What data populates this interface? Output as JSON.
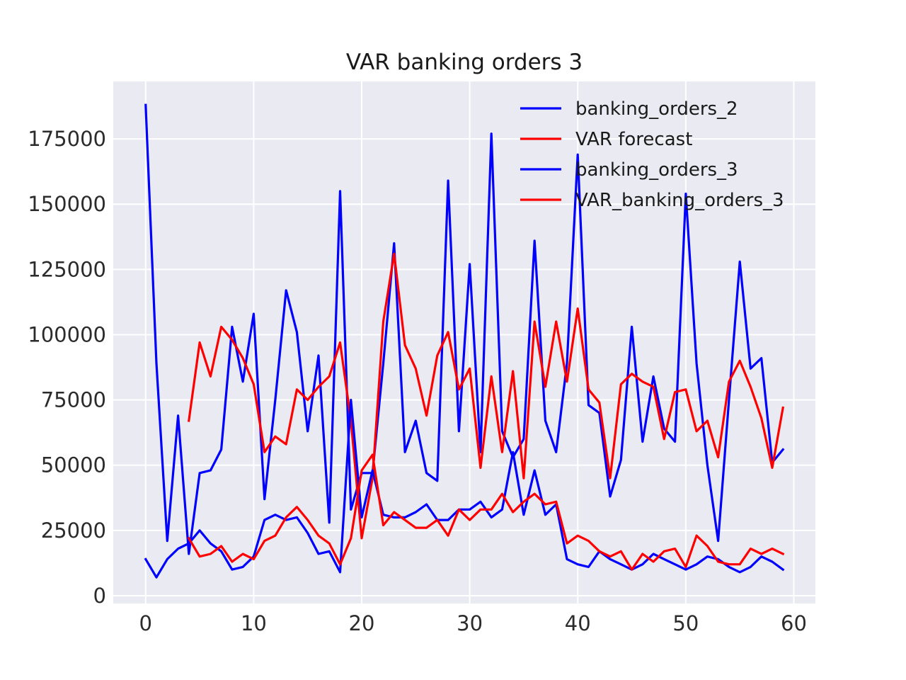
{
  "chart_data": {
    "type": "line",
    "title": "VAR banking orders 3",
    "xlabel": "",
    "ylabel": "",
    "xlim": [
      -3,
      62
    ],
    "ylim": [
      -3000,
      197000
    ],
    "xticks": [
      0,
      10,
      20,
      30,
      40,
      50,
      60
    ],
    "yticks": [
      0,
      25000,
      50000,
      75000,
      100000,
      125000,
      150000,
      175000
    ],
    "grid": true,
    "legend": "top-right",
    "background_color": "#eaeaf2",
    "series": [
      {
        "name": "banking_orders_2",
        "color": "#0000ff",
        "x": [
          0,
          1,
          2,
          3,
          4,
          5,
          6,
          7,
          8,
          9,
          10,
          11,
          12,
          13,
          14,
          15,
          16,
          17,
          18,
          19,
          20,
          21,
          22,
          23,
          24,
          25,
          26,
          27,
          28,
          29,
          30,
          31,
          32,
          33,
          34,
          35,
          36,
          37,
          38,
          39,
          40,
          41,
          42,
          43,
          44,
          45,
          46,
          47,
          48,
          49,
          50,
          51,
          52,
          53,
          54,
          55,
          56,
          57,
          58,
          59
        ],
        "values": [
          188000,
          89000,
          21000,
          69000,
          16000,
          47000,
          48000,
          56000,
          103000,
          82000,
          108000,
          37000,
          75000,
          117000,
          101000,
          63000,
          92000,
          28000,
          155000,
          33000,
          47000,
          47000,
          89000,
          135000,
          55000,
          67000,
          47000,
          44000,
          159000,
          63000,
          127000,
          55000,
          177000,
          63000,
          53000,
          60000,
          136000,
          67000,
          55000,
          89000,
          169000,
          73000,
          70000,
          38000,
          52000,
          103000,
          59000,
          84000,
          64000,
          59000,
          154000,
          89000,
          50000,
          21000,
          75000,
          128000,
          87000,
          91000,
          51000,
          56000
        ]
      },
      {
        "name": "VAR forecast",
        "color": "#ff0000",
        "x": [
          4,
          5,
          6,
          7,
          8,
          9,
          10,
          11,
          12,
          13,
          14,
          15,
          16,
          17,
          18,
          19,
          20,
          21,
          22,
          23,
          24,
          25,
          26,
          27,
          28,
          29,
          30,
          31,
          32,
          33,
          34,
          35,
          36,
          37,
          38,
          39,
          40,
          41,
          42,
          43,
          44,
          45,
          46,
          47,
          48,
          49,
          50,
          51,
          52,
          53,
          54,
          55,
          56,
          57,
          58,
          59
        ],
        "values": [
          67000,
          97000,
          84000,
          103000,
          98000,
          91000,
          81000,
          55000,
          61000,
          58000,
          79000,
          75000,
          80000,
          84000,
          97000,
          67000,
          22000,
          45000,
          105000,
          131000,
          96000,
          87000,
          69000,
          92000,
          101000,
          79000,
          87000,
          49000,
          84000,
          55000,
          86000,
          45000,
          105000,
          80000,
          105000,
          82000,
          110000,
          79000,
          74000,
          45000,
          81000,
          85000,
          82000,
          80000,
          60000,
          78000,
          79000,
          63000,
          67000,
          53000,
          82000,
          90000,
          80000,
          68000,
          49000,
          72000
        ]
      },
      {
        "name": "banking_orders_3",
        "color": "#0000ff",
        "x": [
          0,
          1,
          2,
          3,
          4,
          5,
          6,
          7,
          8,
          9,
          10,
          11,
          12,
          13,
          14,
          15,
          16,
          17,
          18,
          19,
          20,
          21,
          22,
          23,
          24,
          25,
          26,
          27,
          28,
          29,
          30,
          31,
          32,
          33,
          34,
          35,
          36,
          37,
          38,
          39,
          40,
          41,
          42,
          43,
          44,
          45,
          46,
          47,
          48,
          49,
          50,
          51,
          52,
          53,
          54,
          55,
          56,
          57,
          58,
          59
        ],
        "values": [
          14000,
          7000,
          14000,
          18000,
          20000,
          25000,
          20000,
          17000,
          10000,
          11000,
          15000,
          29000,
          31000,
          29000,
          30000,
          24000,
          16000,
          17000,
          9000,
          75000,
          30000,
          48000,
          31000,
          30000,
          30000,
          32000,
          35000,
          29000,
          29000,
          33000,
          33000,
          36000,
          30000,
          33000,
          55000,
          31000,
          48000,
          31000,
          35000,
          14000,
          12000,
          11000,
          17000,
          14000,
          12000,
          10000,
          12000,
          16000,
          14000,
          12000,
          10000,
          12000,
          15000,
          14000,
          11000,
          9000,
          11000,
          15000,
          13000,
          10000
        ]
      },
      {
        "name": "VAR_banking_orders_3",
        "color": "#ff0000",
        "x": [
          4,
          5,
          6,
          7,
          8,
          9,
          10,
          11,
          12,
          13,
          14,
          15,
          16,
          17,
          18,
          19,
          20,
          21,
          22,
          23,
          24,
          25,
          26,
          27,
          28,
          29,
          30,
          31,
          32,
          33,
          34,
          35,
          36,
          37,
          38,
          39,
          40,
          41,
          42,
          43,
          44,
          45,
          46,
          47,
          48,
          49,
          50,
          51,
          52,
          53,
          54,
          55,
          56,
          57,
          58,
          59
        ],
        "values": [
          22000,
          15000,
          16000,
          19000,
          13000,
          16000,
          14000,
          21000,
          23000,
          30000,
          34000,
          29000,
          23000,
          20000,
          12000,
          22000,
          48000,
          54000,
          27000,
          32000,
          29000,
          26000,
          26000,
          29000,
          23000,
          33000,
          29000,
          33000,
          33000,
          39000,
          32000,
          36000,
          39000,
          35000,
          36000,
          20000,
          23000,
          21000,
          17000,
          15000,
          17000,
          10000,
          16000,
          13000,
          17000,
          18000,
          11000,
          23000,
          19000,
          13000,
          12000,
          12000,
          18000,
          16000,
          18000,
          16000
        ]
      }
    ]
  }
}
